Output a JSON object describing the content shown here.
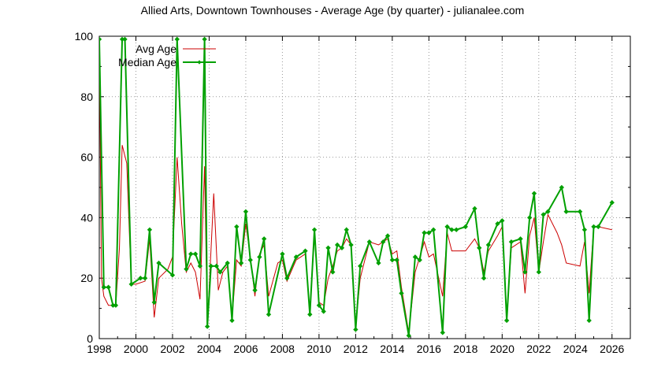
{
  "chart_data": {
    "type": "line",
    "title": "Allied Arts, Downtown Townhouses - Average Age (by quarter) - julianalee.com",
    "xlabel": "",
    "ylabel": "",
    "xlim": [
      1998,
      2027
    ],
    "ylim": [
      0,
      100
    ],
    "x_ticks": [
      1998,
      2000,
      2002,
      2004,
      2006,
      2008,
      2010,
      2012,
      2014,
      2016,
      2018,
      2020,
      2022,
      2024,
      2026
    ],
    "y_ticks": [
      0,
      20,
      40,
      60,
      80,
      100
    ],
    "grid": true,
    "legend_position": "top-left",
    "series": [
      {
        "name": "Avg Age",
        "color": "#cc0000",
        "marker": "none",
        "points": [
          [
            1998.0,
            99
          ],
          [
            1998.12,
            20
          ],
          [
            1998.25,
            14
          ],
          [
            1998.5,
            11
          ],
          [
            1998.9,
            11
          ],
          [
            1999.1,
            30
          ],
          [
            1999.25,
            64
          ],
          [
            1999.5,
            58
          ],
          [
            1999.75,
            18
          ],
          [
            2000.0,
            18
          ],
          [
            2000.5,
            19
          ],
          [
            2000.75,
            33
          ],
          [
            2001.0,
            7
          ],
          [
            2001.25,
            20
          ],
          [
            2001.75,
            23
          ],
          [
            2002.0,
            27
          ],
          [
            2002.25,
            60
          ],
          [
            2002.5,
            38
          ],
          [
            2002.75,
            22
          ],
          [
            2003.0,
            25
          ],
          [
            2003.25,
            22
          ],
          [
            2003.5,
            13
          ],
          [
            2003.75,
            57
          ],
          [
            2003.9,
            4
          ],
          [
            2004.25,
            48
          ],
          [
            2004.5,
            16
          ],
          [
            2004.75,
            22
          ],
          [
            2005.0,
            24
          ],
          [
            2005.25,
            7
          ],
          [
            2005.5,
            26
          ],
          [
            2005.75,
            24
          ],
          [
            2006.0,
            38
          ],
          [
            2006.25,
            27
          ],
          [
            2006.5,
            14
          ],
          [
            2006.75,
            28
          ],
          [
            2007.0,
            31
          ],
          [
            2007.25,
            14
          ],
          [
            2007.75,
            25
          ],
          [
            2008.0,
            26
          ],
          [
            2008.25,
            19
          ],
          [
            2008.75,
            26
          ],
          [
            2009.25,
            28
          ],
          [
            2009.5,
            9
          ],
          [
            2009.75,
            34
          ],
          [
            2010.0,
            12
          ],
          [
            2010.25,
            11
          ],
          [
            2010.5,
            20
          ],
          [
            2010.75,
            24
          ],
          [
            2011.0,
            29
          ],
          [
            2011.25,
            30
          ],
          [
            2011.5,
            33
          ],
          [
            2011.75,
            31
          ],
          [
            2012.0,
            4
          ],
          [
            2012.25,
            20
          ],
          [
            2012.75,
            32
          ],
          [
            2013.25,
            31
          ],
          [
            2013.5,
            32
          ],
          [
            2013.75,
            33
          ],
          [
            2014.0,
            28
          ],
          [
            2014.25,
            29
          ],
          [
            2014.5,
            17
          ],
          [
            2014.9,
            2
          ],
          [
            2015.25,
            22
          ],
          [
            2015.5,
            27
          ],
          [
            2015.75,
            32
          ],
          [
            2016.0,
            27
          ],
          [
            2016.25,
            28
          ],
          [
            2016.75,
            14
          ],
          [
            2017.0,
            35
          ],
          [
            2017.25,
            29
          ],
          [
            2017.5,
            29
          ],
          [
            2018.0,
            29
          ],
          [
            2018.5,
            33
          ],
          [
            2018.75,
            30
          ],
          [
            2019.0,
            22
          ],
          [
            2019.25,
            29
          ],
          [
            2019.75,
            34
          ],
          [
            2020.0,
            37
          ],
          [
            2020.25,
            7
          ],
          [
            2020.5,
            30
          ],
          [
            2021.0,
            32
          ],
          [
            2021.25,
            15
          ],
          [
            2021.5,
            34
          ],
          [
            2021.75,
            40
          ],
          [
            2022.0,
            22
          ],
          [
            2022.25,
            32
          ],
          [
            2022.5,
            41
          ],
          [
            2023.0,
            35
          ],
          [
            2023.25,
            31
          ],
          [
            2023.5,
            25
          ],
          [
            2024.25,
            24
          ],
          [
            2024.5,
            32
          ],
          [
            2024.75,
            15
          ],
          [
            2025.0,
            37
          ],
          [
            2025.25,
            37
          ],
          [
            2026.0,
            36
          ]
        ]
      },
      {
        "name": "Median Age",
        "color": "#00a000",
        "marker": "diamond",
        "points": [
          [
            1998.0,
            99
          ],
          [
            1998.25,
            17
          ],
          [
            1998.5,
            17
          ],
          [
            1998.75,
            11
          ],
          [
            1998.9,
            11
          ],
          [
            1999.25,
            99
          ],
          [
            1999.4,
            99
          ],
          [
            1999.75,
            18
          ],
          [
            2000.25,
            20
          ],
          [
            2000.5,
            20
          ],
          [
            2000.75,
            36
          ],
          [
            2001.0,
            12
          ],
          [
            2001.25,
            25
          ],
          [
            2002.0,
            21
          ],
          [
            2002.25,
            99
          ],
          [
            2002.75,
            23
          ],
          [
            2003.0,
            28
          ],
          [
            2003.25,
            28
          ],
          [
            2003.5,
            24
          ],
          [
            2003.75,
            99
          ],
          [
            2003.9,
            4
          ],
          [
            2004.1,
            24
          ],
          [
            2004.4,
            24
          ],
          [
            2004.6,
            22
          ],
          [
            2005.0,
            25
          ],
          [
            2005.25,
            6
          ],
          [
            2005.5,
            37
          ],
          [
            2005.75,
            25
          ],
          [
            2006.0,
            42
          ],
          [
            2006.25,
            26
          ],
          [
            2006.5,
            16
          ],
          [
            2006.75,
            27
          ],
          [
            2007.0,
            33
          ],
          [
            2007.25,
            8
          ],
          [
            2008.0,
            28
          ],
          [
            2008.25,
            20
          ],
          [
            2008.75,
            27
          ],
          [
            2009.25,
            29
          ],
          [
            2009.5,
            8
          ],
          [
            2009.75,
            36
          ],
          [
            2010.0,
            11
          ],
          [
            2010.25,
            9
          ],
          [
            2010.5,
            30
          ],
          [
            2010.75,
            22
          ],
          [
            2011.0,
            31
          ],
          [
            2011.25,
            30
          ],
          [
            2011.5,
            36
          ],
          [
            2011.75,
            31
          ],
          [
            2012.0,
            3
          ],
          [
            2012.25,
            24
          ],
          [
            2012.75,
            32
          ],
          [
            2013.25,
            25
          ],
          [
            2013.5,
            32
          ],
          [
            2013.75,
            34
          ],
          [
            2014.0,
            26
          ],
          [
            2014.25,
            26
          ],
          [
            2014.5,
            15
          ],
          [
            2014.9,
            1
          ],
          [
            2015.25,
            27
          ],
          [
            2015.5,
            26
          ],
          [
            2015.75,
            35
          ],
          [
            2016.0,
            35
          ],
          [
            2016.25,
            36
          ],
          [
            2016.75,
            2
          ],
          [
            2017.0,
            37
          ],
          [
            2017.25,
            36
          ],
          [
            2017.5,
            36
          ],
          [
            2018.0,
            37
          ],
          [
            2018.5,
            43
          ],
          [
            2018.75,
            30
          ],
          [
            2019.0,
            20
          ],
          [
            2019.25,
            31
          ],
          [
            2019.75,
            38
          ],
          [
            2020.0,
            39
          ],
          [
            2020.25,
            6
          ],
          [
            2020.5,
            32
          ],
          [
            2021.0,
            33
          ],
          [
            2021.25,
            22
          ],
          [
            2021.5,
            40
          ],
          [
            2021.75,
            48
          ],
          [
            2022.0,
            22
          ],
          [
            2022.25,
            41
          ],
          [
            2022.5,
            42
          ],
          [
            2023.25,
            50
          ],
          [
            2023.5,
            42
          ],
          [
            2024.25,
            42
          ],
          [
            2024.5,
            36
          ],
          [
            2024.75,
            6
          ],
          [
            2025.0,
            37
          ],
          [
            2025.25,
            37
          ],
          [
            2026.0,
            45
          ]
        ]
      }
    ]
  }
}
